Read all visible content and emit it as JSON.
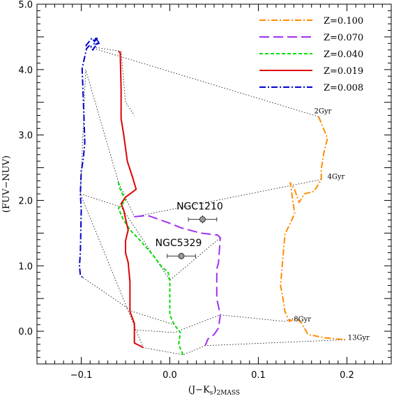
{
  "chart_data": {
    "type": "line",
    "xlabel": "(J−K",
    "xlabel_sub": "s",
    "xlabel_tail": ")",
    "xlabel_sub2": "2MASS",
    "ylabel": "(FUV−NUV)",
    "xlim": [
      -0.15,
      0.25
    ],
    "ylim": [
      -0.5,
      5.0
    ],
    "x_ticks": [
      -0.1,
      0.0,
      0.1,
      0.2
    ],
    "x_tick_labels": [
      "−0.1",
      "0.0",
      "0.1",
      "0.2"
    ],
    "y_ticks": [
      0.0,
      1.0,
      2.0,
      3.0,
      4.0,
      5.0
    ],
    "y_tick_labels": [
      "0.0",
      "1.0",
      "2.0",
      "3.0",
      "4.0",
      "5.0"
    ],
    "legend_position": "top-right",
    "series": [
      {
        "name": "Z=0.100",
        "color": "#ff8c00",
        "dash": "dashdot",
        "x": [
          0.168,
          0.178,
          0.174,
          0.171,
          0.171,
          0.163,
          0.152,
          0.146,
          0.141,
          0.136,
          0.141,
          0.13,
          0.125,
          0.128,
          0.13,
          0.135,
          0.143,
          0.149,
          0.156,
          0.175,
          0.198
        ],
        "y": [
          3.28,
          2.95,
          2.73,
          2.48,
          2.32,
          2.14,
          2.1,
          1.97,
          2.16,
          2.27,
          1.8,
          1.48,
          0.7,
          0.48,
          0.3,
          0.15,
          0.2,
          0.12,
          -0.05,
          -0.1,
          -0.13
        ]
      },
      {
        "name": "Z=0.070",
        "color": "#a030f0",
        "dash": "longdash",
        "x": [
          -0.04,
          -0.025,
          -0.002,
          0.013,
          0.035,
          0.054,
          0.057,
          0.055,
          0.053,
          0.053,
          0.057,
          0.055,
          0.05,
          0.047,
          0.043,
          0.04
        ],
        "y": [
          1.75,
          1.77,
          1.66,
          1.58,
          1.5,
          1.47,
          1.43,
          1.05,
          0.95,
          0.5,
          0.25,
          0.05,
          -0.05,
          -0.08,
          -0.12,
          -0.22
        ]
      },
      {
        "name": "Z=0.040",
        "color": "#00e000",
        "dash": "shortdash",
        "x": [
          -0.058,
          -0.057,
          -0.05,
          -0.058,
          -0.053,
          -0.045,
          -0.033,
          -0.02,
          -0.01,
          -0.002,
          0.0,
          0.0,
          0.0,
          0.005,
          0.012,
          0.01,
          0.015
        ],
        "y": [
          2.28,
          2.2,
          2.0,
          1.88,
          1.72,
          1.55,
          1.38,
          1.18,
          1.0,
          0.9,
          0.78,
          0.55,
          0.25,
          0.1,
          -0.02,
          -0.2,
          -0.36
        ]
      },
      {
        "name": "Z=0.019",
        "color": "#e00000",
        "dash": "solid",
        "x": [
          -0.058,
          -0.056,
          -0.055,
          -0.055,
          -0.052,
          -0.048,
          -0.042,
          -0.038,
          -0.05,
          -0.055,
          -0.052,
          -0.05,
          -0.047,
          -0.05,
          -0.05,
          -0.047,
          -0.045,
          -0.045,
          -0.045,
          -0.04,
          -0.04,
          -0.04,
          -0.03
        ],
        "y": [
          4.28,
          4.26,
          3.7,
          3.25,
          3.0,
          2.6,
          2.35,
          2.17,
          2.05,
          1.95,
          1.85,
          1.72,
          1.55,
          1.38,
          1.2,
          1.05,
          0.75,
          0.5,
          0.3,
          0.12,
          0.02,
          -0.18,
          -0.25
        ]
      },
      {
        "name": "Z=0.008",
        "color": "#0000d0",
        "dash": "dashdot",
        "x": [
          -0.095,
          -0.091,
          -0.088,
          -0.085,
          -0.083,
          -0.08,
          -0.086,
          -0.083,
          -0.081,
          -0.087,
          -0.09,
          -0.094,
          -0.099,
          -0.097,
          -0.096,
          -0.098,
          -0.1,
          -0.101,
          -0.1,
          -0.101,
          -0.102,
          -0.101,
          -0.098
        ],
        "y": [
          4.36,
          4.43,
          4.48,
          4.43,
          4.5,
          4.4,
          4.38,
          4.48,
          4.42,
          4.3,
          4.38,
          4.32,
          4.02,
          3.3,
          2.88,
          2.6,
          2.45,
          2.1,
          1.85,
          1.2,
          1.0,
          0.85,
          0.82
        ]
      }
    ],
    "age_lines": [
      {
        "x": [
          0.168,
          -0.095,
          -0.055,
          -0.05,
          -0.04
        ],
        "y": [
          3.28,
          4.36,
          4.28,
          3.5,
          3.3
        ]
      },
      {
        "x": [
          0.171,
          -0.04,
          -0.058
        ],
        "y": [
          2.32,
          1.75,
          2.28
        ]
      },
      {
        "x": [
          -0.101,
          -0.055,
          0.0,
          0.057
        ],
        "y": [
          2.1,
          1.9,
          0.78,
          1.43
        ]
      },
      {
        "x": [
          -0.098,
          -0.042,
          0.005
        ],
        "y": [
          0.82,
          0.3,
          0.1
        ]
      },
      {
        "x": [
          -0.058,
          -0.095,
          -0.101,
          -0.03,
          0.015,
          0.04,
          0.198
        ],
        "y": [
          2.28,
          4.0,
          2.1,
          -0.25,
          -0.36,
          -0.22,
          -0.13
        ]
      },
      {
        "x": [
          -0.04,
          0.005,
          0.057,
          0.13,
          0.141
        ],
        "y": [
          0.02,
          -0.02,
          0.25,
          0.15,
          0.2
        ]
      }
    ],
    "age_labels": [
      {
        "text": "2Gyr",
        "x": 0.163,
        "y": 3.33
      },
      {
        "text": "4Gyr",
        "x": 0.178,
        "y": 2.33
      },
      {
        "text": "8Gyr",
        "x": 0.14,
        "y": 0.15
      },
      {
        "text": "13Gyr",
        "x": 0.201,
        "y": -0.13
      }
    ],
    "observations": [
      {
        "name": "NGC1210",
        "x": 0.037,
        "y": 1.71,
        "xerr": 0.016,
        "yerr": 0.06
      },
      {
        "name": "NGC5329",
        "x": 0.013,
        "y": 1.15,
        "xerr": 0.016,
        "yerr": 0.05
      }
    ]
  }
}
